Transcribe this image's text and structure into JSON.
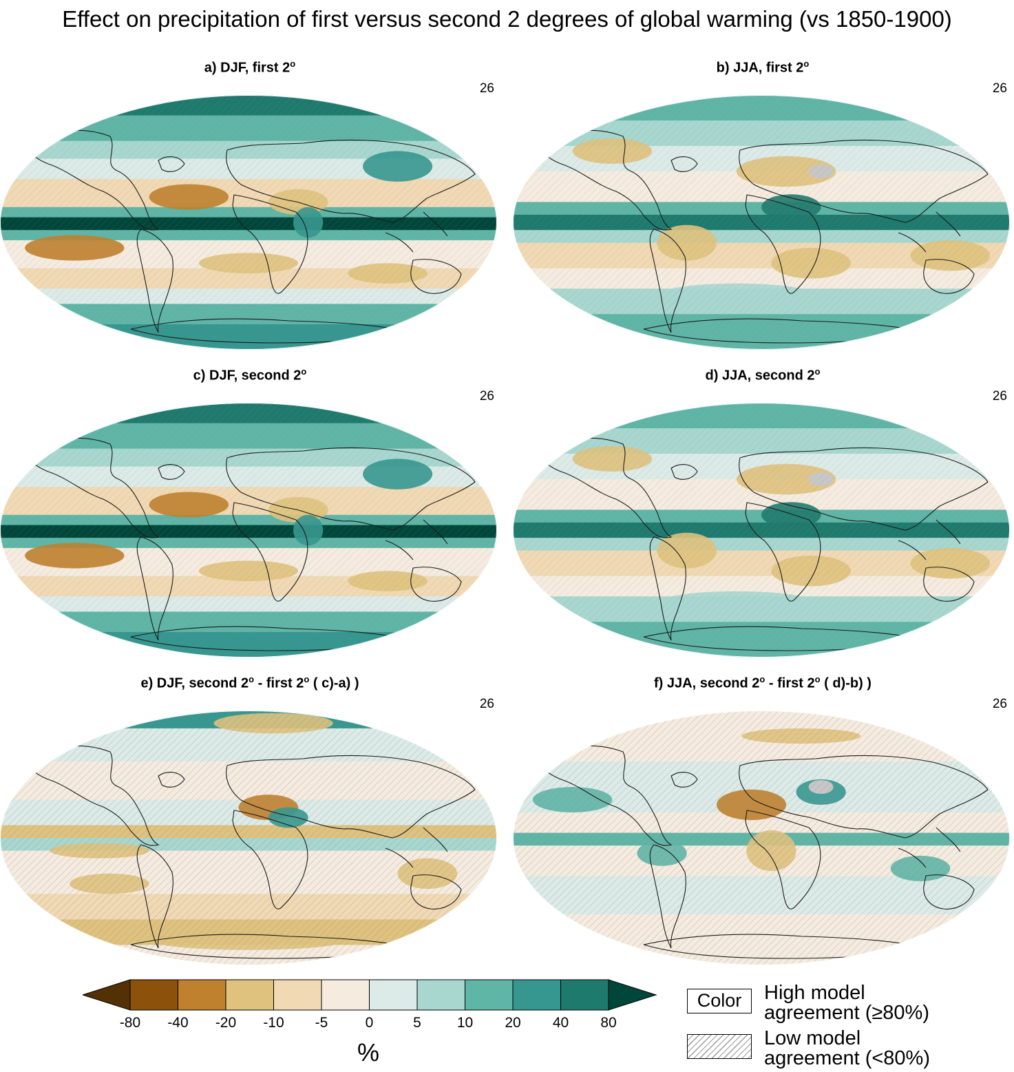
{
  "title": "Effect on precipitation of first versus second 2 degrees of global warming (vs 1850-1900)",
  "panels": [
    {
      "id": "a",
      "label_main": "a) DJF, first 2",
      "label_sup": "o",
      "label_tail": "",
      "count": "26",
      "scheme": "wet",
      "season": "djf"
    },
    {
      "id": "b",
      "label_main": "b) JJA, first 2",
      "label_sup": "o",
      "label_tail": "",
      "count": "26",
      "scheme": "wet",
      "season": "jja"
    },
    {
      "id": "c",
      "label_main": "c) DJF, second 2",
      "label_sup": "o",
      "label_tail": "",
      "count": "26",
      "scheme": "wet",
      "season": "djf"
    },
    {
      "id": "d",
      "label_main": "d) JJA, second 2",
      "label_sup": "o",
      "label_tail": "",
      "count": "26",
      "scheme": "wet",
      "season": "jja"
    },
    {
      "id": "e",
      "label_main": "e)  DJF, second 2",
      "label_sup": "o",
      "label_mid": " - first 2",
      "label_sup2": "o",
      "label_tail": " ( c)-a) )",
      "count": "26",
      "scheme": "diff",
      "season": "djf"
    },
    {
      "id": "f",
      "label_main": "f)  JJA, second 2",
      "label_sup": "o",
      "label_mid": " - first 2",
      "label_sup2": "o",
      "label_tail": " ( d)-b) )",
      "count": "26",
      "scheme": "diff",
      "season": "jja"
    }
  ],
  "colorbar": {
    "ticks": [
      "-80",
      "-40",
      "-20",
      "-10",
      "-5",
      "0",
      "5",
      "10",
      "20",
      "40",
      "80"
    ],
    "colors": [
      "#543005",
      "#8c510a",
      "#bf812d",
      "#dfc27d",
      "#f1d9b4",
      "#f5ebdf",
      "#dcebe8",
      "#a7d7cf",
      "#5fb5a6",
      "#35978f",
      "#1f7a6e",
      "#01463a"
    ],
    "unit": "%"
  },
  "legend": {
    "color_box": "Color",
    "high_line1": "High model",
    "high_line2": "agreement (≥80%)",
    "low_line1": "Low model",
    "low_line2": "agreement (<80%)"
  },
  "no_data_color": "#c7c7c7"
}
